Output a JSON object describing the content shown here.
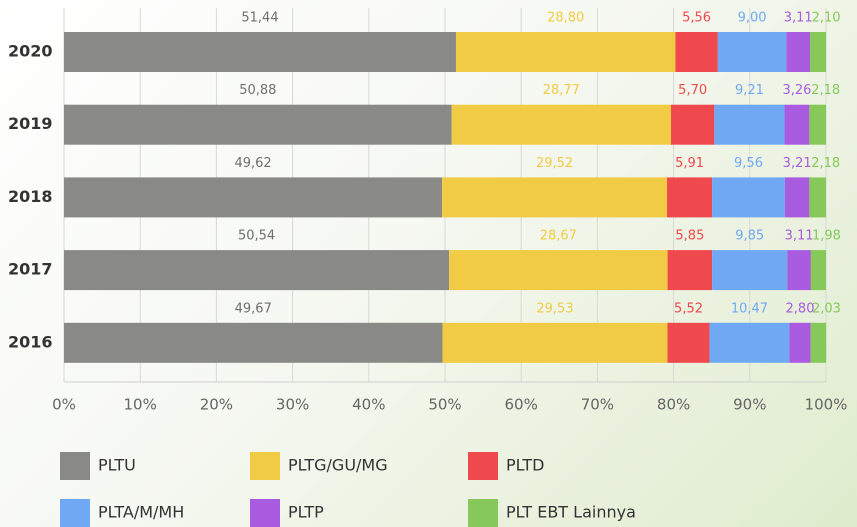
{
  "chart_data": {
    "type": "stacked-bar-horizontal",
    "categories": [
      "2020",
      "2019",
      "2018",
      "2017",
      "2016"
    ],
    "series": [
      {
        "name": "PLTU",
        "color": "#898a86",
        "values": [
          51.44,
          50.88,
          49.62,
          50.54,
          49.67
        ],
        "value_labels": [
          "51,44",
          "50,88",
          "49,62",
          "50,54",
          "49,67"
        ]
      },
      {
        "name": "PLTG/GU/MG",
        "color": "#f2cb45",
        "values": [
          28.8,
          28.77,
          29.52,
          28.67,
          29.53
        ],
        "value_labels": [
          "28,80",
          "28,77",
          "29,52",
          "28,67",
          "29,53"
        ]
      },
      {
        "name": "PLTD",
        "color": "#ef484d",
        "values": [
          5.56,
          5.7,
          5.91,
          5.85,
          5.52
        ],
        "value_labels": [
          "5,56",
          "5,70",
          "5,91",
          "5,85",
          "5,52"
        ]
      },
      {
        "name": "PLTA/M/MH",
        "color": "#6fa9f4",
        "values": [
          9.0,
          9.21,
          9.56,
          9.85,
          10.47
        ],
        "value_labels": [
          "9,00",
          "9,21",
          "9,56",
          "9,85",
          "10,47"
        ]
      },
      {
        "name": "PLTP",
        "color": "#a95cdf",
        "values": [
          3.11,
          3.26,
          3.21,
          3.11,
          2.8
        ],
        "value_labels": [
          "3,11",
          "3,26",
          "3,21",
          "3,11",
          "2,80"
        ]
      },
      {
        "name": "PLT EBT Lainnya",
        "color": "#86c95a",
        "values": [
          2.1,
          2.18,
          2.18,
          1.98,
          2.03
        ],
        "value_labels": [
          "2,10",
          "2,18",
          "2,18",
          "1,98",
          "2,03"
        ]
      }
    ],
    "xlim": [
      0,
      100
    ],
    "xticks": [
      {
        "value": 0,
        "label": "0%"
      },
      {
        "value": 10,
        "label": "10%"
      },
      {
        "value": 20,
        "label": "20%"
      },
      {
        "value": 30,
        "label": "30%"
      },
      {
        "value": 40,
        "label": "40%"
      },
      {
        "value": 50,
        "label": "50%"
      },
      {
        "value": 60,
        "label": "60%"
      },
      {
        "value": 70,
        "label": "70%"
      },
      {
        "value": 80,
        "label": "80%"
      },
      {
        "value": 90,
        "label": "90%"
      },
      {
        "value": 100,
        "label": "100%"
      }
    ],
    "grid": true,
    "legend": "bottom"
  }
}
